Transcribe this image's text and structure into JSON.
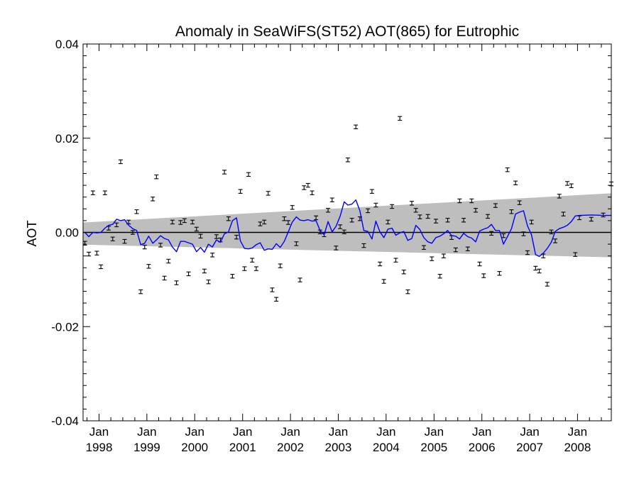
{
  "chart_data": {
    "type": "line",
    "title": "Anomaly in SeaWiFS(ST52) AOT(865) for Eutrophic",
    "xlabel": "",
    "ylabel": "AOT",
    "xlim": [
      "1997-09-01",
      "2008-09-15"
    ],
    "ylim": [
      -0.04,
      0.04
    ],
    "y_ticks": [
      {
        "value": 0.04,
        "label": "0.04"
      },
      {
        "value": 0.02,
        "label": "0.02"
      },
      {
        "value": 0.0,
        "label": "0.00"
      },
      {
        "value": -0.02,
        "label": "-0.02"
      },
      {
        "value": -0.04,
        "label": "-0.04"
      }
    ],
    "x_ticks": [
      {
        "date": "1998-01-01",
        "month": "Jan",
        "year": "1998"
      },
      {
        "date": "1999-01-01",
        "month": "Jan",
        "year": "1999"
      },
      {
        "date": "2000-01-01",
        "month": "Jan",
        "year": "2000"
      },
      {
        "date": "2001-01-01",
        "month": "Jan",
        "year": "2001"
      },
      {
        "date": "2002-01-01",
        "month": "Jan",
        "year": "2002"
      },
      {
        "date": "2003-01-01",
        "month": "Jan",
        "year": "2003"
      },
      {
        "date": "2004-01-01",
        "month": "Jan",
        "year": "2004"
      },
      {
        "date": "2005-01-01",
        "month": "Jan",
        "year": "2005"
      },
      {
        "date": "2006-01-01",
        "month": "Jan",
        "year": "2006"
      },
      {
        "date": "2007-01-01",
        "month": "Jan",
        "year": "2007"
      },
      {
        "date": "2008-01-01",
        "month": "Jan",
        "year": "2008"
      }
    ],
    "grid": false,
    "colors": {
      "line": "#0000ff",
      "band": "#bebebe",
      "points": "#000000",
      "zero_line": "#000000"
    },
    "band": {
      "x": [
        "1997-09-01",
        "2008-09-15"
      ],
      "upper": [
        0.0021,
        0.0083
      ],
      "lower": [
        -0.0026,
        -0.0053
      ]
    },
    "series": [
      {
        "type": "scatter_errorbar",
        "x": [
          "1997-09",
          "1997-10",
          "1997-11",
          "1997-12",
          "1998-01",
          "1998-02",
          "1998-03",
          "1998-04",
          "1998-05",
          "1998-06",
          "1998-07",
          "1998-08",
          "1998-09",
          "1998-10",
          "1998-11",
          "1998-12",
          "1999-01",
          "1999-02",
          "1999-03",
          "1999-04",
          "1999-05",
          "1999-06",
          "1999-07",
          "1999-08",
          "1999-09",
          "1999-10",
          "1999-11",
          "1999-12",
          "2000-01",
          "2000-02",
          "2000-03",
          "2000-04",
          "2000-05",
          "2000-06",
          "2000-07",
          "2000-08",
          "2000-09",
          "2000-10",
          "2000-11",
          "2000-12",
          "2001-01",
          "2001-02",
          "2001-03",
          "2001-04",
          "2001-05",
          "2001-06",
          "2001-07",
          "2001-08",
          "2001-09",
          "2001-10",
          "2001-11",
          "2001-12",
          "2002-01",
          "2002-02",
          "2002-03",
          "2002-04",
          "2002-05",
          "2002-06",
          "2002-07",
          "2002-08",
          "2002-09",
          "2002-10",
          "2002-11",
          "2002-12",
          "2003-01",
          "2003-02",
          "2003-03",
          "2003-04",
          "2003-05",
          "2003-06",
          "2003-07",
          "2003-08",
          "2003-09",
          "2003-10",
          "2003-11",
          "2003-12",
          "2004-01",
          "2004-02",
          "2004-03",
          "2004-04",
          "2004-05",
          "2004-06",
          "2004-07",
          "2004-08",
          "2004-09",
          "2004-10",
          "2004-11",
          "2004-12",
          "2005-01",
          "2005-02",
          "2005-03",
          "2005-04",
          "2005-05",
          "2005-06",
          "2005-07",
          "2005-08",
          "2005-09",
          "2005-10",
          "2005-11",
          "2005-12",
          "2006-01",
          "2006-02",
          "2006-03",
          "2006-04",
          "2006-05",
          "2006-06",
          "2006-07",
          "2006-08",
          "2006-09",
          "2006-10",
          "2006-11",
          "2006-12",
          "2007-01",
          "2007-02",
          "2007-03",
          "2007-04",
          "2007-05",
          "2007-06",
          "2007-07",
          "2007-08",
          "2007-09",
          "2007-10",
          "2007-11",
          "2007-12",
          "2008-01",
          "2008-04",
          "2008-07",
          "2008-09"
        ],
        "y": [
          -0.0023,
          -0.0046,
          0.0084,
          -0.0044,
          -0.0073,
          0.0084,
          0.0009,
          -0.0014,
          0.0016,
          0.015,
          -0.0019,
          0.0022,
          0,
          0.0044,
          -0.0126,
          -0.0031,
          -0.0072,
          0.0071,
          0.0118,
          -0.0027,
          -0.0097,
          -0.0061,
          0.0022,
          -0.0107,
          0.0021,
          0.0025,
          -0.0088,
          0.0022,
          0.0007,
          -0.0008,
          -0.0082,
          -0.0105,
          -0.0048,
          -0.0009,
          -0.0016,
          0.0128,
          0.0029,
          -0.0093,
          -0.001,
          0.0087,
          -0.0077,
          0.0123,
          -0.0059,
          -0.0077,
          0.0018,
          0.0022,
          0.0083,
          -0.0122,
          -0.0142,
          -0.0071,
          0.0029,
          0.0021,
          0.0053,
          -0.0024,
          -0.0101,
          0.0095,
          0.01,
          0.0084,
          0.0031,
          0.0001,
          -0.0005,
          0.0047,
          0.0069,
          -0.0033,
          0.0012,
          0.0001,
          0.0154,
          0.0026,
          0.0224,
          0.0029,
          -0.0028,
          0.0046,
          0.0087,
          0.0058,
          -0.0067,
          -0.0104,
          0.0022,
          0.0055,
          -0.0059,
          0.0242,
          -0.0084,
          -0.0126,
          0.0062,
          0.0047,
          0.0033,
          -0.0032,
          0.0034,
          -0.0056,
          0.0024,
          -0.0093,
          -0.005,
          0.0026,
          -0.0011,
          -0.0037,
          0.0067,
          0.0026,
          -0.0035,
          0.0067,
          0.0047,
          -0.0067,
          -0.0092,
          0.0034,
          -0.0002,
          0.0057,
          -0.0087,
          -0.0007,
          0.0133,
          0.0044,
          0.0105,
          0.0063,
          -0.0003,
          -0.0043,
          0.0022,
          -0.0076,
          -0.0082,
          -0.005,
          -0.011,
          0.0001,
          -0.0018,
          0.0077,
          0.0039,
          0.0104,
          0.0099,
          -0.0047,
          0.0031,
          0.0028,
          0.0037,
          0.0103
        ],
        "err": 0.0004
      },
      {
        "type": "line",
        "x": [
          "1997-09",
          "1997-10",
          "1997-11",
          "1997-12",
          "1998-01",
          "1998-02",
          "1998-03",
          "1998-04",
          "1998-05",
          "1998-06",
          "1998-07",
          "1998-08",
          "1998-09",
          "1998-10",
          "1998-11",
          "1998-12",
          "1999-01",
          "1999-02",
          "1999-03",
          "1999-04",
          "1999-05",
          "1999-06",
          "1999-07",
          "1999-08",
          "1999-09",
          "1999-10",
          "1999-11",
          "1999-12",
          "2000-01",
          "2000-02",
          "2000-03",
          "2000-04",
          "2000-05",
          "2000-06",
          "2000-07",
          "2000-08",
          "2000-09",
          "2000-10",
          "2000-11",
          "2000-12",
          "2001-01",
          "2001-02",
          "2001-03",
          "2001-04",
          "2001-05",
          "2001-06",
          "2001-07",
          "2001-08",
          "2001-09",
          "2001-10",
          "2001-11",
          "2001-12",
          "2002-01",
          "2002-02",
          "2002-03",
          "2002-04",
          "2002-05",
          "2002-06",
          "2002-07",
          "2002-08",
          "2002-09",
          "2002-10",
          "2002-11",
          "2002-12",
          "2003-01",
          "2003-02",
          "2003-03",
          "2003-04",
          "2003-05",
          "2003-06",
          "2003-07",
          "2003-08",
          "2003-09",
          "2003-10",
          "2003-11",
          "2003-12",
          "2004-01",
          "2004-02",
          "2004-03",
          "2004-04",
          "2004-05",
          "2004-06",
          "2004-07",
          "2004-08",
          "2004-09",
          "2004-10",
          "2004-11",
          "2004-12",
          "2005-01",
          "2005-02",
          "2005-03",
          "2005-04",
          "2005-05",
          "2005-06",
          "2005-07",
          "2005-08",
          "2005-09",
          "2005-10",
          "2005-11",
          "2005-12",
          "2006-01",
          "2006-02",
          "2006-03",
          "2006-04",
          "2006-05",
          "2006-06",
          "2006-07",
          "2006-08",
          "2006-09",
          "2006-10",
          "2006-11",
          "2006-12",
          "2007-01",
          "2007-02",
          "2007-03",
          "2007-04",
          "2007-05",
          "2007-06",
          "2007-07",
          "2007-08",
          "2007-09",
          "2007-10",
          "2007-11",
          "2007-12",
          "2008-01",
          "2008-04",
          "2008-07",
          "2008-09"
        ],
        "y": [
          0,
          -0.0009,
          0,
          -0.0001,
          0,
          0.0009,
          0.0015,
          0.0017,
          0.0028,
          0.0025,
          0.0027,
          0.0015,
          0.0008,
          0.0004,
          -0.0026,
          -0.0023,
          -0.0008,
          -0.0023,
          -0.0016,
          -0.0007,
          -0.0013,
          -0.0016,
          -0.0031,
          -0.0041,
          -0.0019,
          -0.0019,
          -0.0022,
          -0.0025,
          -0.0041,
          -0.0032,
          -0.0042,
          -0.0025,
          -0.0031,
          -0.0016,
          -0.0021,
          -0.0003,
          0.0001,
          0.0025,
          0.0031,
          -0.0018,
          -0.0034,
          -0.0035,
          -0.0033,
          -0.0026,
          -0.0022,
          -0.0038,
          -0.0035,
          -0.0036,
          -0.0024,
          -0.0032,
          -0.0019,
          0.0001,
          0.0022,
          0.0033,
          0.0026,
          0.0025,
          0.0027,
          0.0024,
          0.0025,
          0.0004,
          -0.0005,
          0.0023,
          0.0001,
          0.0013,
          0.0034,
          0.0065,
          0.0058,
          0.006,
          0.0069,
          0.0046,
          0.0004,
          0.0002,
          -0.0014,
          0.0024,
          0.0001,
          -0.0011,
          0.0007,
          0.0009,
          -0.0006,
          -0.0001,
          0.0002,
          -0.0017,
          -0.0013,
          0.0015,
          0.0006,
          -0.0011,
          -0.002,
          -0.0023,
          -0.0011,
          -0.0008,
          -0.0003,
          0.0004,
          -0.0007,
          -0.0008,
          -0.0014,
          -0.0002,
          -0.0009,
          -0.0012,
          -0.002,
          0.0003,
          0.0007,
          0.001,
          0.0017,
          0.0004,
          0.0004,
          -0.0025,
          -0.0009,
          0.0008,
          0.0039,
          0.0043,
          0.0046,
          0.0014,
          -0.0005,
          -0.0047,
          -0.0051,
          -0.0044,
          -0.0034,
          -0.0021,
          0.0002,
          0.0008,
          0.0011,
          0.0015,
          0.0023,
          0.0035,
          0.0036,
          0.0037,
          0.0036,
          0.0036
        ]
      }
    ]
  }
}
